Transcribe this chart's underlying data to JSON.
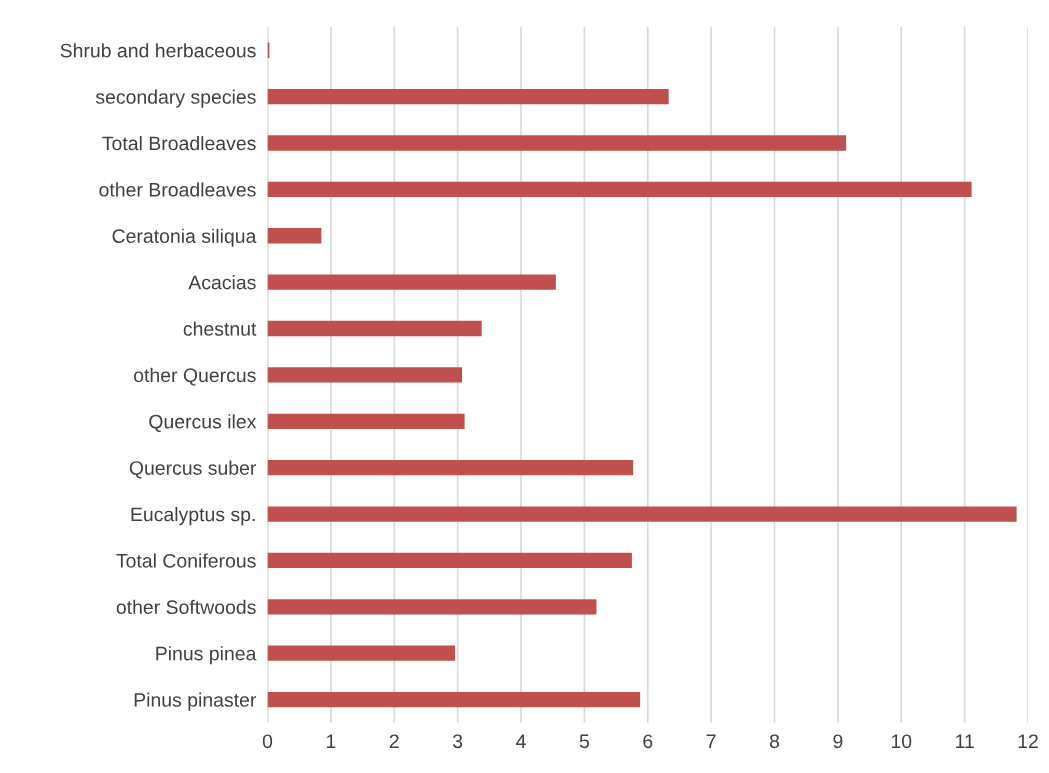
{
  "chart_data": {
    "type": "bar",
    "orientation": "horizontal",
    "categories": [
      "Shrub and herbaceous",
      "secondary species",
      "Total Broadleaves",
      "other Broadleaves",
      "Ceratonia siliqua",
      "Acacias",
      "chestnut",
      "other Quercus",
      "Quercus ilex",
      "Quercus suber",
      "Eucalyptus sp.",
      "Total Coniferous",
      "other Softwoods",
      "Pinus pinea",
      "Pinus pinaster"
    ],
    "values": [
      0.03,
      6.33,
      9.13,
      11.11,
      0.85,
      4.55,
      3.38,
      3.07,
      3.11,
      5.77,
      11.82,
      5.75,
      5.19,
      2.96,
      5.88
    ],
    "color": "#c0504d",
    "xlim": [
      0,
      12
    ],
    "xticks": [
      0,
      1,
      2,
      3,
      4,
      5,
      6,
      7,
      8,
      9,
      10,
      11,
      12
    ],
    "grid": "x",
    "legend": false
  }
}
